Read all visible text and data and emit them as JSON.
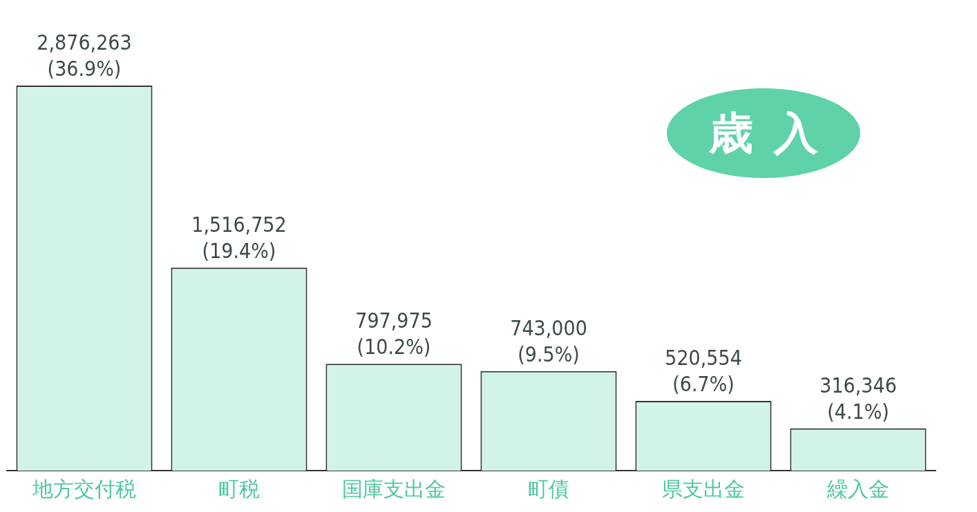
{
  "chart_data": {
    "type": "bar",
    "title": "歳入",
    "categories": [
      "地方交付税",
      "町税",
      "国庫支出金",
      "町債",
      "県支出金",
      "繰入金"
    ],
    "values": [
      2876263,
      1516752,
      797975,
      743000,
      520554,
      316346
    ],
    "color": "#d2f3e9",
    "value_labels": [
      "2,876,263 (36.9%)",
      "1,516,752 (19.4%)",
      "797,975 (10.2%)",
      "743,000 (9.5%)",
      "520,554 (6.7%)",
      "316,346 (4.1%)"
    ],
    "tick_labels": "x",
    "grid": false,
    "legend": false
  }
}
